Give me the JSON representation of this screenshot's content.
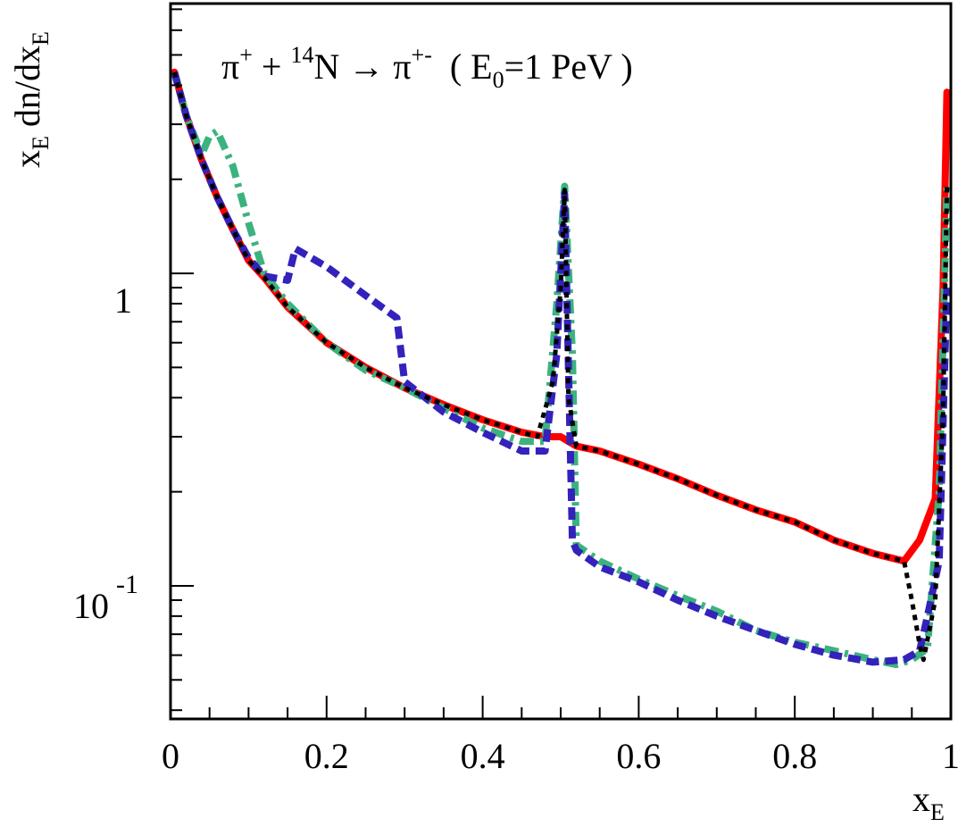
{
  "chart_data": {
    "type": "line",
    "title": "π⁺ + ¹⁴N → π⁺⁻  ( E₀=1 PeV )",
    "title_parts": {
      "a": "π",
      "a_sup": "+",
      "b": " + ",
      "c_sup": "14",
      "c": "N → π",
      "d_sup": "+-",
      "e": "  ( E",
      "e_sub": "0",
      "f": "=1 PeV )"
    },
    "xlabel": "x",
    "xlabel_sub": "E",
    "ylabel_prefix": "x",
    "ylabel_prefix_sub": "E",
    "ylabel_mid": " dn/dx",
    "ylabel_mid_sub": "E",
    "xlim": [
      0,
      1
    ],
    "ylim": [
      0.0375,
      7.3
    ],
    "yscale": "log",
    "x_ticks": [
      "0",
      "0.2",
      "0.4",
      "0.6",
      "0.8",
      "1"
    ],
    "y_tick_one": "1",
    "y_tick_tenth_base": "10",
    "y_tick_tenth_exp": "-1",
    "grid": false,
    "legend": "none",
    "series": [
      {
        "color": "#ff0000",
        "dash": "solid",
        "x": [
          0.005,
          0.02,
          0.04,
          0.06,
          0.08,
          0.1,
          0.12,
          0.15,
          0.2,
          0.25,
          0.3,
          0.35,
          0.4,
          0.45,
          0.48,
          0.5,
          0.52,
          0.55,
          0.6,
          0.65,
          0.7,
          0.75,
          0.8,
          0.85,
          0.9,
          0.94,
          0.96,
          0.98,
          0.99,
          0.995
        ],
        "y": [
          4.4,
          3.2,
          2.3,
          1.75,
          1.38,
          1.1,
          0.97,
          0.78,
          0.6,
          0.5,
          0.43,
          0.38,
          0.34,
          0.31,
          0.3,
          0.3,
          0.28,
          0.27,
          0.245,
          0.22,
          0.195,
          0.175,
          0.16,
          0.14,
          0.127,
          0.12,
          0.14,
          0.19,
          0.9,
          3.8
        ]
      },
      {
        "color": "#3cb37f",
        "dash": "dashdot",
        "x": [
          0.005,
          0.02,
          0.04,
          0.05,
          0.06,
          0.08,
          0.1,
          0.12,
          0.15,
          0.2,
          0.25,
          0.3,
          0.35,
          0.4,
          0.45,
          0.48,
          0.495,
          0.505,
          0.515,
          0.52,
          0.55,
          0.6,
          0.65,
          0.7,
          0.75,
          0.8,
          0.85,
          0.9,
          0.93,
          0.95,
          0.97,
          0.985,
          0.995
        ],
        "y": [
          4.4,
          3.2,
          2.4,
          2.75,
          2.85,
          2.2,
          1.45,
          1.0,
          0.8,
          0.6,
          0.49,
          0.43,
          0.37,
          0.32,
          0.29,
          0.29,
          0.8,
          1.9,
          0.55,
          0.135,
          0.12,
          0.105,
          0.093,
          0.083,
          0.072,
          0.066,
          0.062,
          0.058,
          0.056,
          0.058,
          0.063,
          0.2,
          1.9
        ]
      },
      {
        "color": "#3322bb",
        "dash": "dashed",
        "x": [
          0.005,
          0.02,
          0.04,
          0.06,
          0.08,
          0.1,
          0.12,
          0.15,
          0.16,
          0.2,
          0.25,
          0.29,
          0.3,
          0.35,
          0.4,
          0.45,
          0.48,
          0.495,
          0.505,
          0.51,
          0.515,
          0.52,
          0.55,
          0.6,
          0.65,
          0.7,
          0.75,
          0.8,
          0.85,
          0.9,
          0.94,
          0.96,
          0.97,
          0.985,
          0.995
        ],
        "y": [
          4.4,
          3.2,
          2.3,
          1.75,
          1.38,
          1.12,
          0.98,
          0.95,
          1.2,
          1.05,
          0.85,
          0.72,
          0.45,
          0.36,
          0.31,
          0.27,
          0.27,
          0.55,
          1.8,
          0.5,
          0.14,
          0.13,
          0.115,
          0.103,
          0.09,
          0.08,
          0.072,
          0.065,
          0.06,
          0.057,
          0.058,
          0.062,
          0.08,
          0.12,
          0.9
        ]
      },
      {
        "color": "#000000",
        "dash": "dotted",
        "x": [
          0.005,
          0.02,
          0.04,
          0.06,
          0.08,
          0.1,
          0.12,
          0.15,
          0.2,
          0.25,
          0.3,
          0.35,
          0.4,
          0.45,
          0.47,
          0.49,
          0.5,
          0.505,
          0.51,
          0.52,
          0.55,
          0.6,
          0.65,
          0.7,
          0.75,
          0.8,
          0.85,
          0.9,
          0.94,
          0.95,
          0.96,
          0.965,
          0.98,
          0.99,
          0.995
        ],
        "y": [
          4.4,
          3.2,
          2.3,
          1.75,
          1.38,
          1.1,
          0.97,
          0.78,
          0.6,
          0.5,
          0.43,
          0.38,
          0.34,
          0.31,
          0.3,
          0.45,
          0.9,
          1.85,
          0.4,
          0.28,
          0.27,
          0.245,
          0.22,
          0.195,
          0.175,
          0.16,
          0.14,
          0.127,
          0.12,
          0.09,
          0.065,
          0.058,
          0.09,
          0.35,
          1.9
        ]
      }
    ]
  }
}
